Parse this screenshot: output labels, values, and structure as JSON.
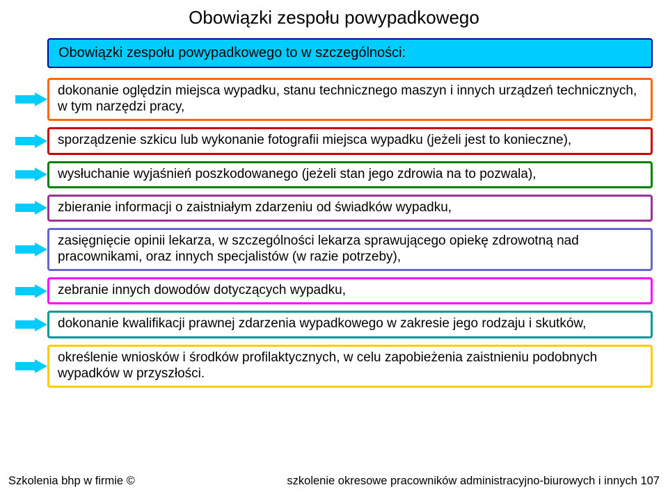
{
  "title": "Obowiązki zespołu powypadkowego",
  "subtitle": "Obowiązki zespołu powypadkowego to w szczególności:",
  "subtitle_bg": "#00ccff",
  "subtitle_border": "#000099",
  "arrow_fill": "#00ccff",
  "items": [
    {
      "text": "dokonanie oględzin miejsca wypadku, stanu technicznego maszyn i innych urządzeń technicznych, w tym narzędzi pracy,",
      "border": "#ff6600"
    },
    {
      "text": "sporządzenie szkicu lub wykonanie fotografii miejsca wypadku (jeżeli jest to konieczne),",
      "border": "#cc0000"
    },
    {
      "text": "wysłuchanie wyjaśnień poszkodowanego (jeżeli stan jego zdrowia na to pozwala),",
      "border": "#008000"
    },
    {
      "text": "zbieranie informacji o zaistniałym zdarzeniu od świadków wypadku,",
      "border": "#993399"
    },
    {
      "text": "zasięgnięcie opinii lekarza, w szczególności lekarza sprawującego opiekę zdrowotną nad pracownikami, oraz innych specjalistów (w razie potrzeby),",
      "border": "#6666cc"
    },
    {
      "text": "zebranie innych dowodów dotyczących wypadku,",
      "border": "#ff00ff"
    },
    {
      "text": "dokonanie kwalifikacji prawnej zdarzenia wypadkowego w zakresie jego rodzaju i skutków,",
      "border": "#009999"
    },
    {
      "text": "określenie wniosków i środków profilaktycznych, w celu zapobieżenia zaistnieniu podobnych wypadków w przyszłości.",
      "border": "#ffcc00"
    }
  ],
  "footer_left": "Szkolenia bhp w firmie ©",
  "footer_right": "szkolenie okresowe pracowników administracyjno-biurowych i innych 107"
}
